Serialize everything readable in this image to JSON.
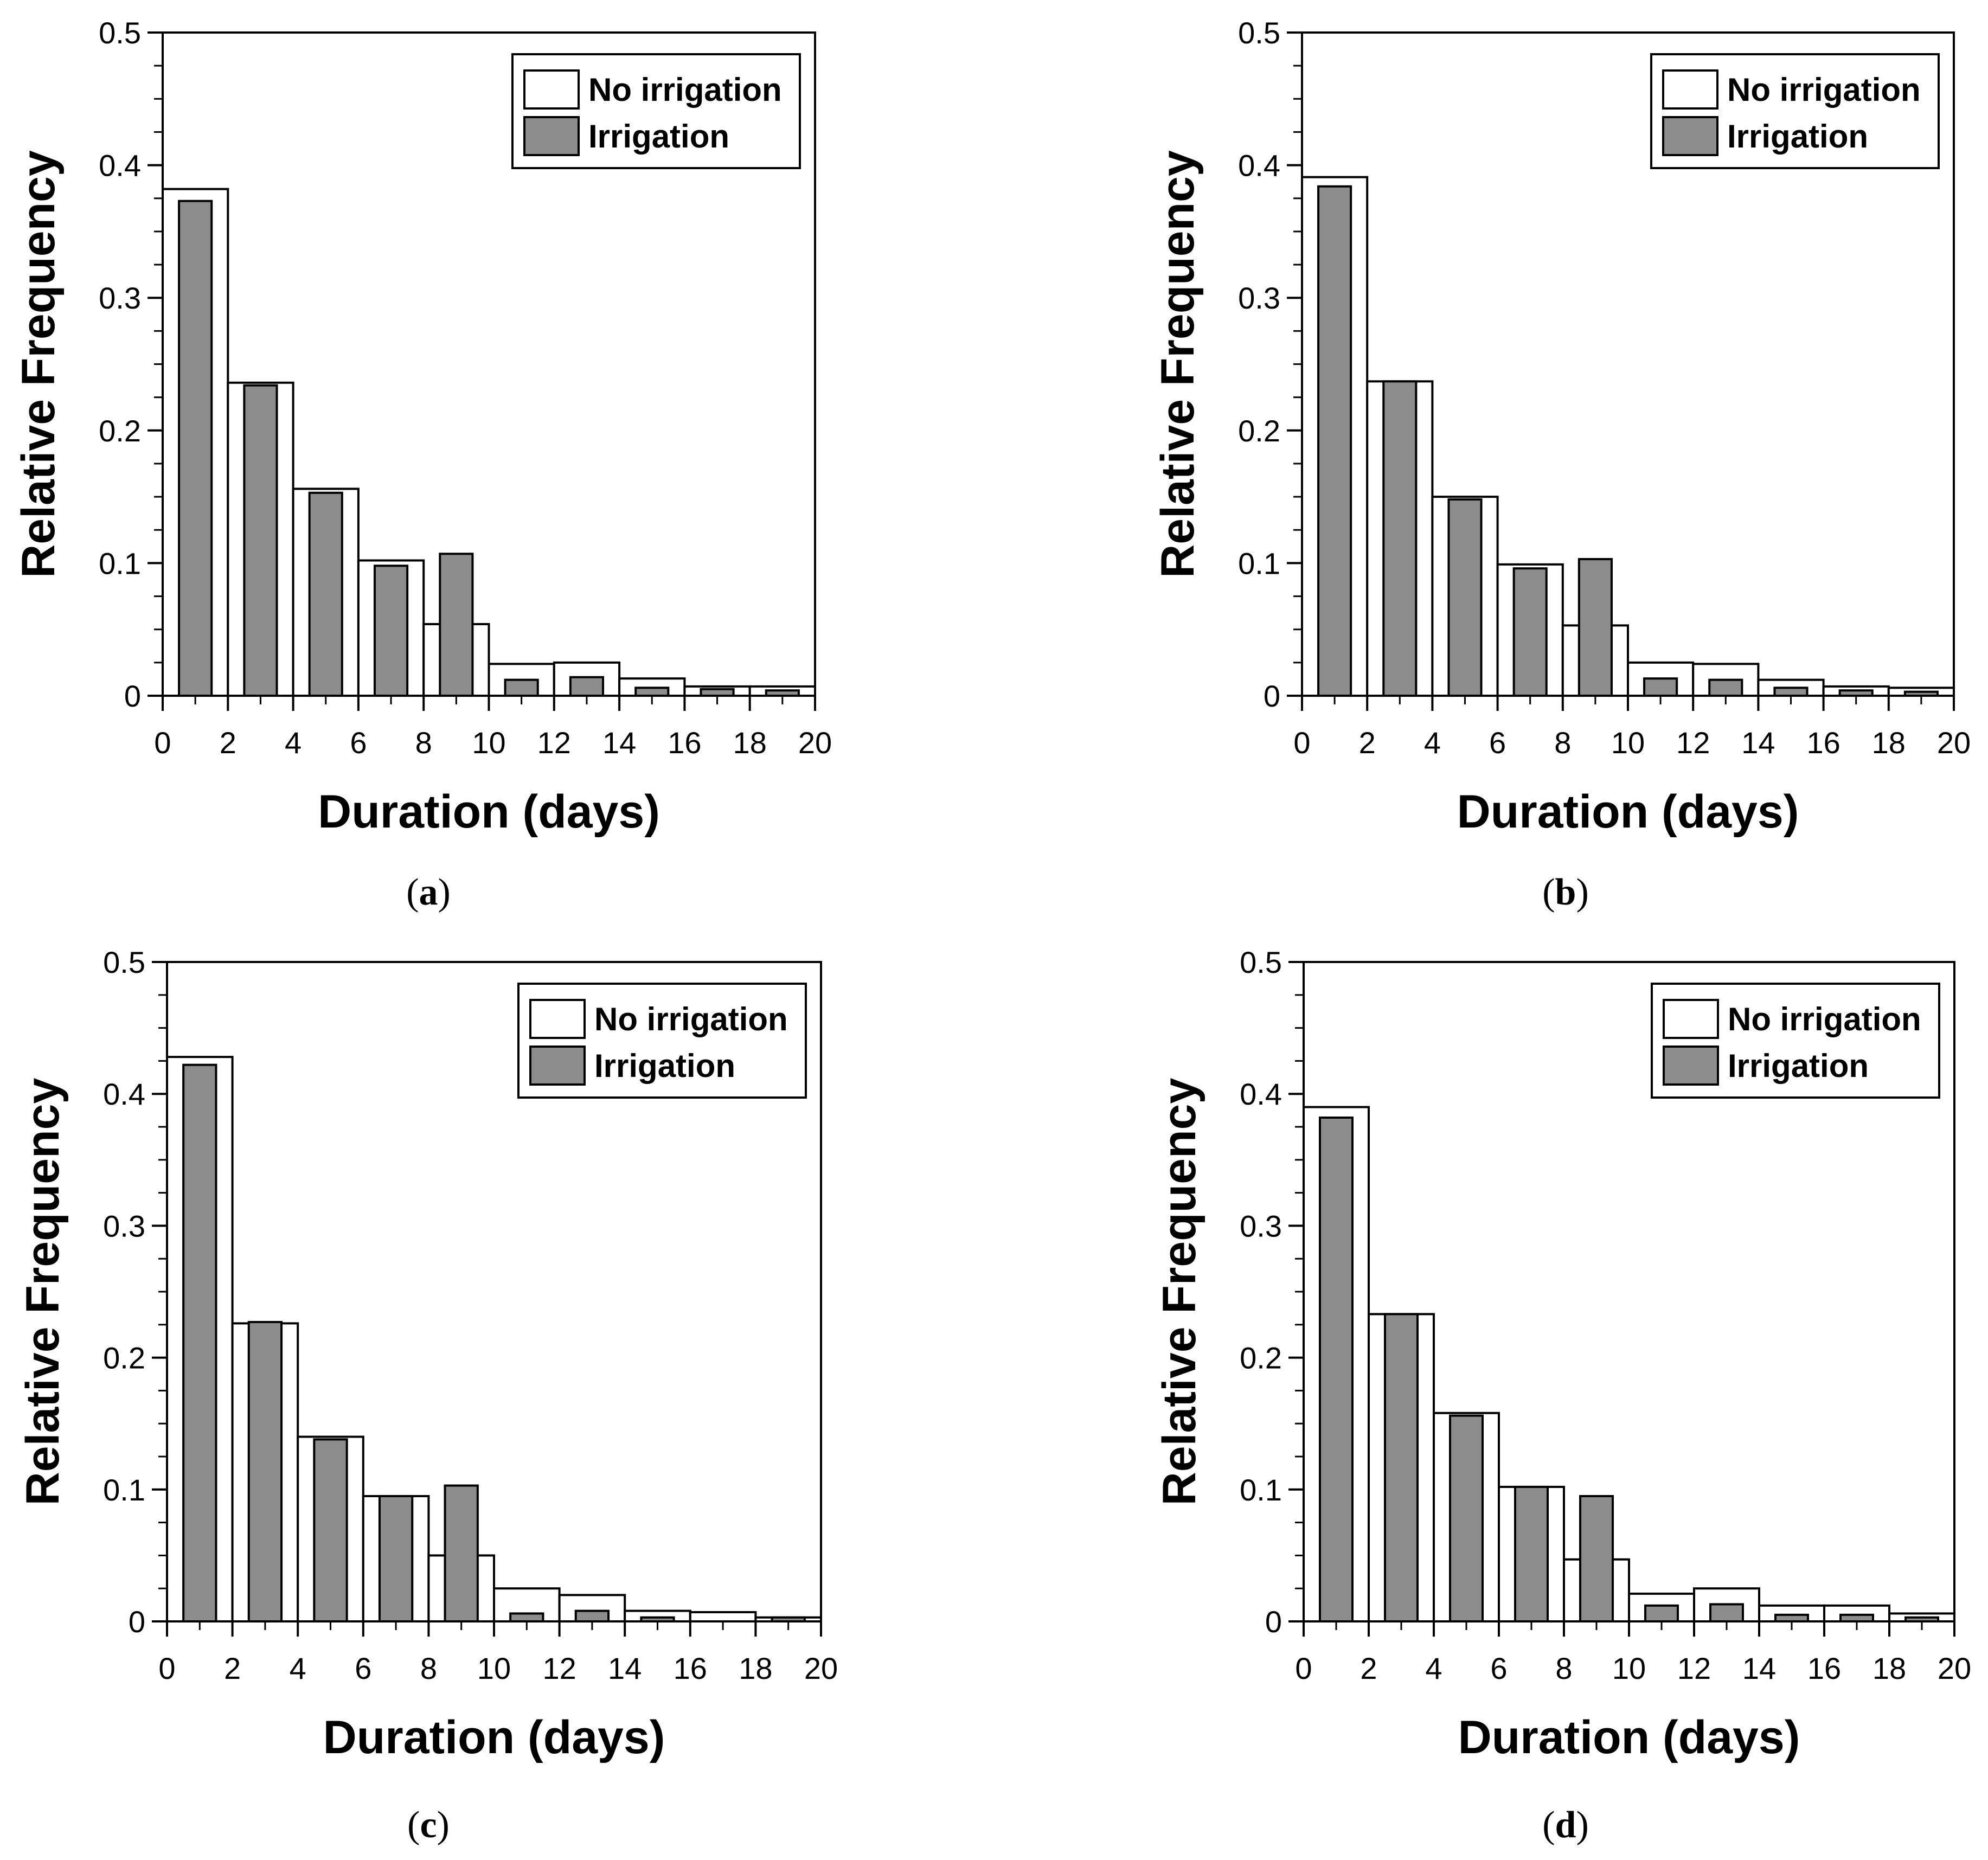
{
  "colors": {
    "no_irrigation_fill": "#ffffff",
    "irrigation_fill": "#8c8c8c",
    "stroke": "#000000"
  },
  "chart_data": [
    {
      "type": "bar",
      "caption_letter": "a",
      "xlabel": "Duration (days)",
      "ylabel": "Relative Frequency",
      "xlim": [
        0,
        20
      ],
      "ylim": [
        0,
        0.5
      ],
      "x_ticks": [
        "0",
        "2",
        "4",
        "6",
        "8",
        "10",
        "12",
        "14",
        "16",
        "18",
        "20"
      ],
      "y_ticks": [
        "0",
        "0.1",
        "0.2",
        "0.3",
        "0.4",
        "0.5"
      ],
      "bin_edges": [
        0,
        2,
        4,
        6,
        8,
        10,
        12,
        14,
        16,
        18,
        20
      ],
      "legend": {
        "position": "top-right",
        "entries": [
          "No irrigation",
          "Irrigation"
        ]
      },
      "series": [
        {
          "name": "No irrigation",
          "values": [
            0.382,
            0.236,
            0.156,
            0.102,
            0.054,
            0.024,
            0.025,
            0.013,
            0.007,
            0.007
          ]
        },
        {
          "name": "Irrigation",
          "values": [
            0.373,
            0.234,
            0.153,
            0.098,
            0.107,
            0.012,
            0.014,
            0.006,
            0.005,
            0.004
          ]
        }
      ]
    },
    {
      "type": "bar",
      "caption_letter": "b",
      "xlabel": "Duration (days)",
      "ylabel": "Relative Frequency",
      "xlim": [
        0,
        20
      ],
      "ylim": [
        0,
        0.5
      ],
      "x_ticks": [
        "0",
        "2",
        "4",
        "6",
        "8",
        "10",
        "12",
        "14",
        "16",
        "18",
        "20"
      ],
      "y_ticks": [
        "0",
        "0.1",
        "0.2",
        "0.3",
        "0.4",
        "0.5"
      ],
      "bin_edges": [
        0,
        2,
        4,
        6,
        8,
        10,
        12,
        14,
        16,
        18,
        20
      ],
      "legend": {
        "position": "top-right",
        "entries": [
          "No irrigation",
          "Irrigation"
        ]
      },
      "series": [
        {
          "name": "No irrigation",
          "values": [
            0.391,
            0.237,
            0.15,
            0.099,
            0.053,
            0.025,
            0.024,
            0.012,
            0.007,
            0.006
          ]
        },
        {
          "name": "Irrigation",
          "values": [
            0.384,
            0.237,
            0.148,
            0.096,
            0.103,
            0.013,
            0.012,
            0.006,
            0.004,
            0.003
          ]
        }
      ]
    },
    {
      "type": "bar",
      "caption_letter": "c",
      "xlabel": "Duration (days)",
      "ylabel": "Relative Frequency",
      "xlim": [
        0,
        20
      ],
      "ylim": [
        0,
        0.5
      ],
      "x_ticks": [
        "0",
        "2",
        "4",
        "6",
        "8",
        "10",
        "12",
        "14",
        "16",
        "18",
        "20"
      ],
      "y_ticks": [
        "0",
        "0.1",
        "0.2",
        "0.3",
        "0.4",
        "0.5"
      ],
      "bin_edges": [
        0,
        2,
        4,
        6,
        8,
        10,
        12,
        14,
        16,
        18,
        20
      ],
      "legend": {
        "position": "top-right",
        "entries": [
          "No irrigation",
          "Irrigation"
        ]
      },
      "series": [
        {
          "name": "No irrigation",
          "values": [
            0.428,
            0.226,
            0.14,
            0.095,
            0.05,
            0.025,
            0.02,
            0.008,
            0.007,
            0.003
          ]
        },
        {
          "name": "Irrigation",
          "values": [
            0.422,
            0.227,
            0.138,
            0.095,
            0.103,
            0.006,
            0.008,
            0.003,
            0.0,
            0.003
          ]
        }
      ]
    },
    {
      "type": "bar",
      "caption_letter": "d",
      "xlabel": "Duration (days)",
      "ylabel": "Relative Frequency",
      "xlim": [
        0,
        20
      ],
      "ylim": [
        0,
        0.5
      ],
      "x_ticks": [
        "0",
        "2",
        "4",
        "6",
        "8",
        "10",
        "12",
        "14",
        "16",
        "18",
        "20"
      ],
      "y_ticks": [
        "0",
        "0.1",
        "0.2",
        "0.3",
        "0.4",
        "0.5"
      ],
      "bin_edges": [
        0,
        2,
        4,
        6,
        8,
        10,
        12,
        14,
        16,
        18,
        20
      ],
      "legend": {
        "position": "top-right",
        "entries": [
          "No irrigation",
          "Irrigation"
        ]
      },
      "series": [
        {
          "name": "No irrigation",
          "values": [
            0.39,
            0.233,
            0.158,
            0.102,
            0.047,
            0.021,
            0.025,
            0.012,
            0.012,
            0.006
          ]
        },
        {
          "name": "Irrigation",
          "values": [
            0.382,
            0.233,
            0.156,
            0.102,
            0.095,
            0.012,
            0.013,
            0.005,
            0.005,
            0.003
          ]
        }
      ]
    }
  ]
}
